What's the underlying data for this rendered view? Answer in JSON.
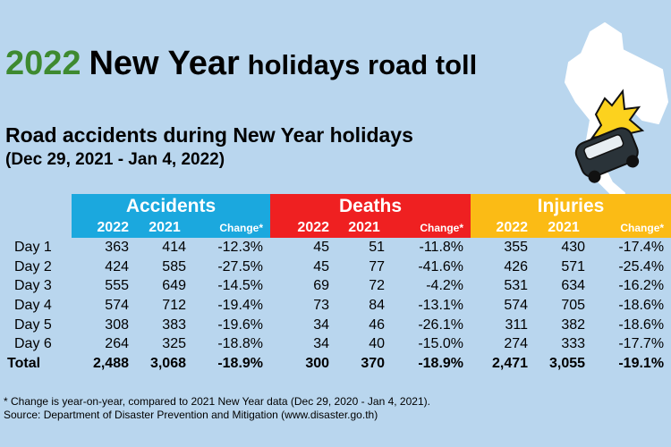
{
  "header": {
    "title_year": "2022",
    "title_main": "New Year",
    "title_rest": "holidays road toll",
    "subtitle": "Road accidents during New Year holidays",
    "date_range": "(Dec 29, 2021 - Jan 4, 2022)"
  },
  "icons": {
    "map": "thailand-map-icon",
    "car": "crashed-car-icon"
  },
  "colors": {
    "accidents": "#1ba8de",
    "deaths": "#ef2021",
    "injuries": "#fbbb15",
    "title_year": "#3e8a30",
    "background": "#b9d6ee"
  },
  "chart_data": {
    "type": "table",
    "groups": [
      {
        "name": "Accidents",
        "columns": [
          "2022",
          "2021",
          "Change*"
        ]
      },
      {
        "name": "Deaths",
        "columns": [
          "2022",
          "2021",
          "Change*"
        ]
      },
      {
        "name": "Injuries",
        "columns": [
          "2022",
          "2021",
          "Change*"
        ]
      }
    ],
    "rows": [
      {
        "label": "Day 1",
        "accidents": [
          "363",
          "414",
          "-12.3%"
        ],
        "deaths": [
          "45",
          "51",
          "-11.8%"
        ],
        "injuries": [
          "355",
          "430",
          "-17.4%"
        ]
      },
      {
        "label": "Day 2",
        "accidents": [
          "424",
          "585",
          "-27.5%"
        ],
        "deaths": [
          "45",
          "77",
          "-41.6%"
        ],
        "injuries": [
          "426",
          "571",
          "-25.4%"
        ]
      },
      {
        "label": "Day 3",
        "accidents": [
          "555",
          "649",
          "-14.5%"
        ],
        "deaths": [
          "69",
          "72",
          "-4.2%"
        ],
        "injuries": [
          "531",
          "634",
          "-16.2%"
        ]
      },
      {
        "label": "Day 4",
        "accidents": [
          "574",
          "712",
          "-19.4%"
        ],
        "deaths": [
          "73",
          "84",
          "-13.1%"
        ],
        "injuries": [
          "574",
          "705",
          "-18.6%"
        ]
      },
      {
        "label": "Day 5",
        "accidents": [
          "308",
          "383",
          "-19.6%"
        ],
        "deaths": [
          "34",
          "46",
          "-26.1%"
        ],
        "injuries": [
          "311",
          "382",
          "-18.6%"
        ]
      },
      {
        "label": "Day 6",
        "accidents": [
          "264",
          "325",
          "-18.8%"
        ],
        "deaths": [
          "34",
          "40",
          "-15.0%"
        ],
        "injuries": [
          "274",
          "333",
          "-17.7%"
        ]
      }
    ],
    "total": {
      "label": "Total",
      "accidents": [
        "2,488",
        "3,068",
        "-18.9%"
      ],
      "deaths": [
        "300",
        "370",
        "-18.9%"
      ],
      "injuries": [
        "2,471",
        "3,055",
        "-19.1%"
      ]
    }
  },
  "footnote": {
    "note": "* Change is year-on-year, compared to 2021 New Year data (Dec 29, 2020 - Jan 4, 2021).",
    "source": "Source: Department of Disaster Prevention and Mitigation (www.disaster.go.th)"
  }
}
